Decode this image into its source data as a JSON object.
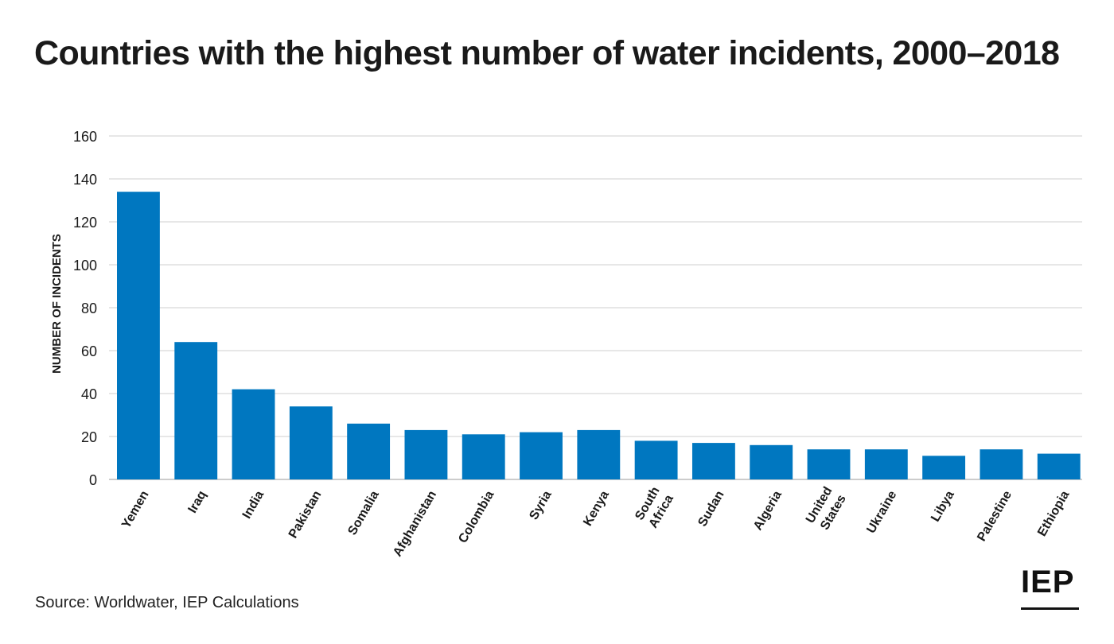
{
  "title": "Countries with the highest number of water incidents, 2000–2018",
  "source": "Source: Worldwater, IEP Calculations",
  "logo_text": "IEP",
  "colors": {
    "bar": "#0077c0",
    "grid": "#cfcfcf",
    "text": "#1a1a1a"
  },
  "chart_data": {
    "type": "bar",
    "title": "Countries with the highest number of water incidents, 2000–2018",
    "xlabel": "",
    "ylabel": "NUMBER OF INCIDENTS",
    "ylim": [
      0,
      160
    ],
    "yticks": [
      0,
      20,
      40,
      60,
      80,
      100,
      120,
      140,
      160
    ],
    "grid": true,
    "categories": [
      [
        "Yemen"
      ],
      [
        "Iraq"
      ],
      [
        "India"
      ],
      [
        "Pakistan"
      ],
      [
        "Somalia"
      ],
      [
        "Afghanistan"
      ],
      [
        "Colombia"
      ],
      [
        "Syria"
      ],
      [
        "Kenya"
      ],
      [
        "South",
        "Africa"
      ],
      [
        "Sudan"
      ],
      [
        "Algeria"
      ],
      [
        "United",
        "States"
      ],
      [
        "Ukraine"
      ],
      [
        "Libya"
      ],
      [
        "Palestine"
      ],
      [
        "Ethiopia"
      ]
    ],
    "values": [
      134,
      64,
      42,
      34,
      26,
      23,
      21,
      22,
      23,
      18,
      17,
      16,
      14,
      14,
      11,
      14,
      12
    ]
  }
}
